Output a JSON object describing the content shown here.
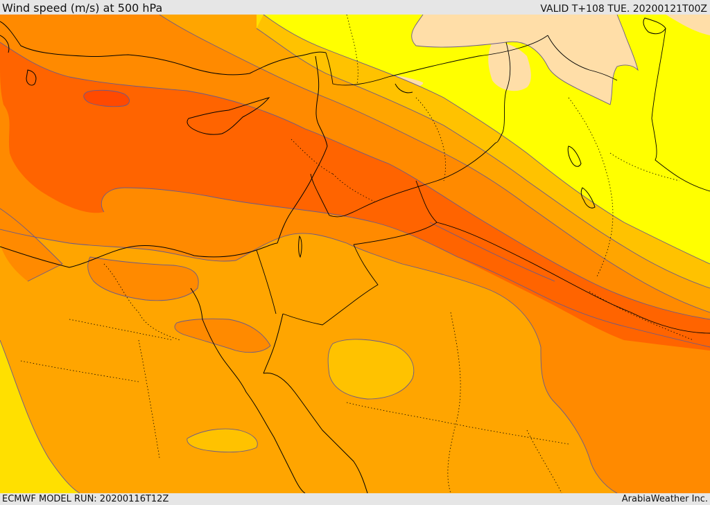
{
  "header": {
    "title": "Wind speed (m/s) at 500 hPa",
    "valid": "VALID T+108 TUE. 20200121T00Z"
  },
  "footer": {
    "model_run": "ECMWF MODEL RUN: 20200116T12Z",
    "credit": "ArabiaWeather Inc."
  },
  "palette": {
    "band_1": "#ffff00",
    "band_2": "#ffe000",
    "band_3": "#ffc200",
    "band_4": "#ffa500",
    "band_5": "#ff8a00",
    "band_6": "#ff6400",
    "band_7": "#ff4a00",
    "light_peach": "#ffdea8"
  }
}
